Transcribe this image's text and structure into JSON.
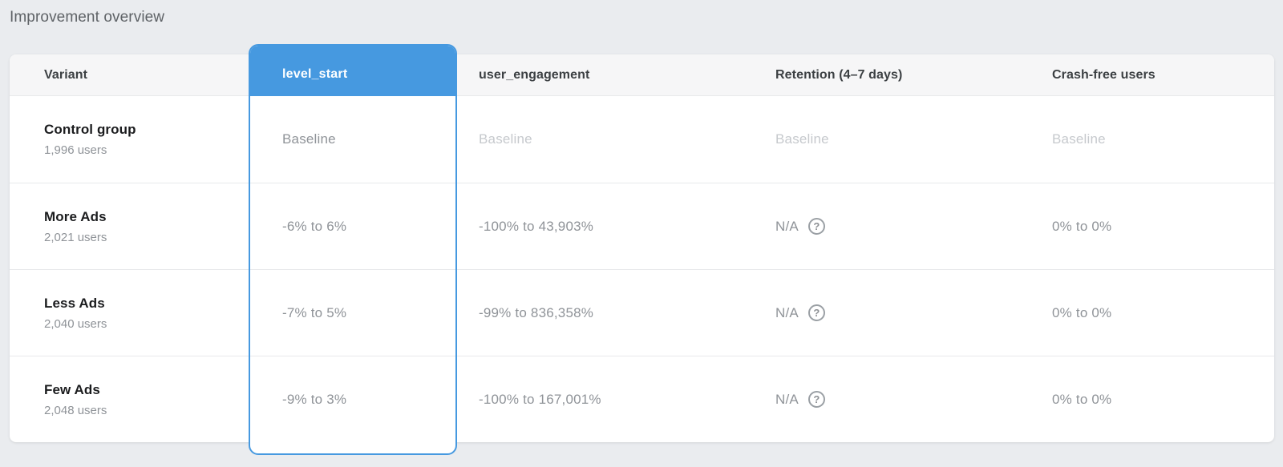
{
  "page": {
    "title": "Improvement overview"
  },
  "theme": {
    "page_bg": "#eaecef",
    "card_bg": "#ffffff",
    "header_bg": "#f6f6f7",
    "accent": "#4699e0",
    "divider": "#e8e9eb",
    "header_text": "#3c4043",
    "name_text": "#1b1c1e",
    "muted_text": "#8f9398",
    "baseline_text": "#c6c9cd",
    "title_text": "#5e6266"
  },
  "table": {
    "columns": [
      {
        "key": "variant",
        "label": "Variant"
      },
      {
        "key": "level_start",
        "label": "level_start",
        "highlighted": true
      },
      {
        "key": "user_engagement",
        "label": "user_engagement"
      },
      {
        "key": "retention",
        "label": "Retention (4–7 days)"
      },
      {
        "key": "crash_free",
        "label": "Crash-free users"
      }
    ],
    "help_icon_glyph": "?",
    "rows": [
      {
        "variant": "Control group",
        "users": "1,996 users",
        "level_start": "Baseline",
        "user_engagement": "Baseline",
        "retention": "Baseline",
        "crash_free": "Baseline",
        "is_baseline": true
      },
      {
        "variant": "More Ads",
        "users": "2,021 users",
        "level_start": "-6% to 6%",
        "user_engagement": "-100% to 43,903%",
        "retention": "N/A",
        "crash_free": "0% to 0%",
        "is_baseline": false
      },
      {
        "variant": "Less Ads",
        "users": "2,040 users",
        "level_start": "-7% to 5%",
        "user_engagement": "-99% to 836,358%",
        "retention": "N/A",
        "crash_free": "0% to 0%",
        "is_baseline": false
      },
      {
        "variant": "Few Ads",
        "users": "2,048 users",
        "level_start": "-9% to 3%",
        "user_engagement": "-100% to 167,001%",
        "retention": "N/A",
        "crash_free": "0% to 0%",
        "is_baseline": false
      }
    ]
  }
}
